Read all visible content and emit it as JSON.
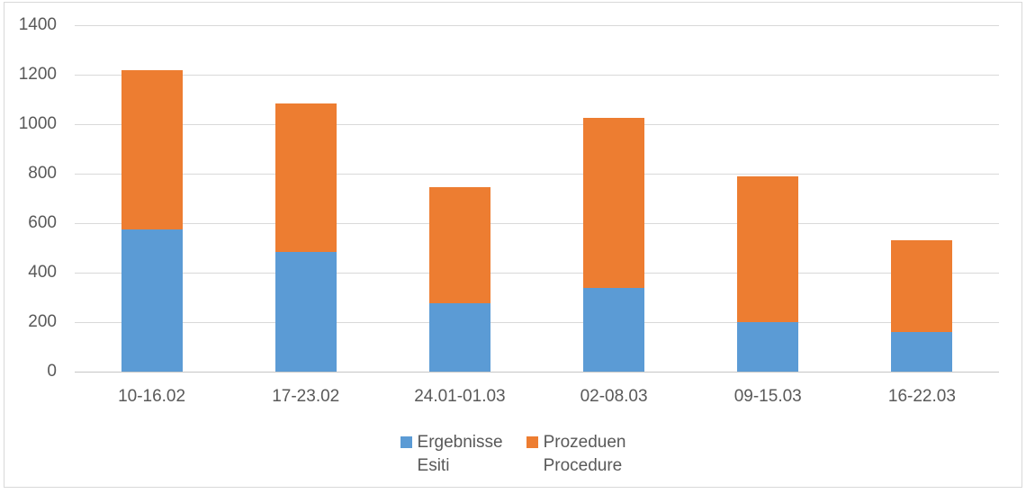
{
  "chart_data": {
    "type": "bar",
    "stacked": true,
    "title": "",
    "xlabel": "",
    "ylabel": "",
    "categories": [
      "10-16.02",
      "17-23.02",
      "24.01-01.03",
      "02-08.03",
      "09-15.03",
      "16-22.03"
    ],
    "series": [
      {
        "name": "Ergebnisse Esiti",
        "legend_lines": [
          "Ergebnisse",
          "Esiti"
        ],
        "color": "#5b9bd5",
        "values": [
          575,
          485,
          275,
          340,
          200,
          160
        ]
      },
      {
        "name": "Prozeduen Procedure",
        "legend_lines": [
          "Prozeduen",
          "Procedure"
        ],
        "color": "#ed7d31",
        "values": [
          645,
          600,
          470,
          685,
          590,
          370
        ]
      }
    ],
    "stack_totals": [
      1220,
      1085,
      745,
      1025,
      790,
      530
    ],
    "ylim": [
      0,
      1400
    ],
    "ytick_step": 200,
    "ytick_labels": [
      "0",
      "200",
      "400",
      "600",
      "800",
      "1000",
      "1200",
      "1400"
    ],
    "grid": true,
    "legend_position": "bottom"
  },
  "colors": {
    "background": "#ffffff",
    "chart_border": "#d9d9d9",
    "gridline": "#d9d9d9",
    "axis_line": "#c6c6c6",
    "tick_text": "#595959",
    "series_blue": "#5b9bd5",
    "series_orange": "#ed7d31"
  }
}
